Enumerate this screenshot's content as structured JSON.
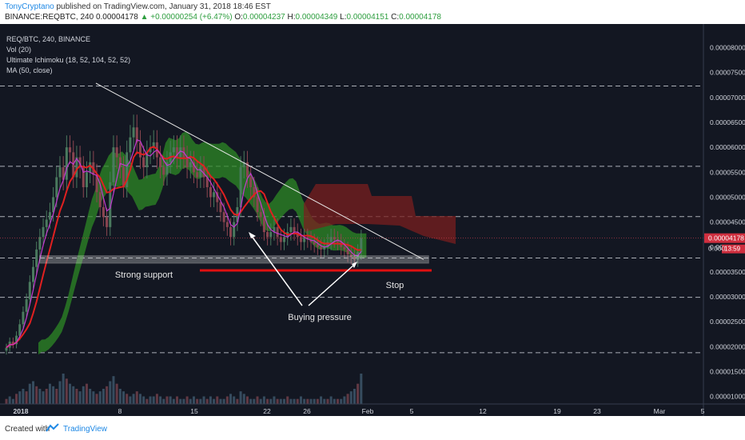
{
  "header": {
    "author": "TonyCryptano",
    "published": "published on TradingView.com, January 31, 2018 18:46 EST",
    "symbol_line": "BINANCE:REQBTC, 240",
    "last_price": "0.00004178",
    "change_text": "▲ +0.00000254 (+6.47%)",
    "open_label": "O:",
    "open_value": "0.00004237",
    "high_label": "H:",
    "high_value": "0.00004349",
    "low_label": "L:",
    "low_value": "0.00004151",
    "close_label": "C:",
    "close_value": "0.00004178"
  },
  "legend": {
    "symbol": "REQ/BTC, 240, BINANCE",
    "vol": "Vol (20)",
    "ichimoku": "Ultimate Ichimoku (18, 52, 104, 52, 52)",
    "ma": "MA (50, close)"
  },
  "annotations": {
    "support": "Strong support",
    "stop": "Stop",
    "buying": "Buying pressure"
  },
  "price_badge": {
    "price": "0.00004178",
    "timer": "13:59"
  },
  "footer": {
    "created_with": "Created with",
    "brand": "TradingView"
  },
  "colors": {
    "background": "#131722",
    "candle_up": "#4a7a5e",
    "candle_down": "#8a4550",
    "ma_red": "#e02020",
    "kijun_magenta": "#c23ad1",
    "cloud_green": "#2d8a26",
    "cloud_red": "#7a1f1f",
    "stop_line": "#e01010",
    "accent_blue": "#1e88e5"
  },
  "chart_data": {
    "type": "candlestick",
    "title": "REQ/BTC, 240, BINANCE",
    "y_axis": {
      "ticks": [
        "0.00008000",
        "0.00007500",
        "0.00007000",
        "0.00006500",
        "0.00006000",
        "0.00005500",
        "0.00005000",
        "0.00004500",
        "0.00004000",
        "0.00003500",
        "0.00003000",
        "0.00002500",
        "0.00002000",
        "0.00001500",
        "0.00001000"
      ],
      "range": [
        8.5e-06,
        8.25e-05
      ],
      "current_label": "0.00004178",
      "extra_label": "0.000"
    },
    "x_axis": {
      "ticks": [
        "2018",
        "8",
        "15",
        "22",
        "26",
        "Feb",
        "5",
        "12",
        "19",
        "23",
        "Mar",
        "5"
      ]
    },
    "dashed_levels": [
      7.23e-05,
      5.62e-05,
      4.61e-05,
      3.78e-05,
      2.99e-05,
      1.88e-05
    ],
    "support_zone": [
      3.68e-05,
      3.82e-05
    ],
    "stop_level": 3.53e-05,
    "closes": [
      1.98e-05,
      2.1e-05,
      2.05e-05,
      2.22e-05,
      2.45e-05,
      2.7e-05,
      2.95e-05,
      3.3e-05,
      3.6e-05,
      3.95e-05,
      4.2e-05,
      4.4e-05,
      4.55e-05,
      4.7e-05,
      5e-05,
      5.4e-05,
      5.6e-05,
      5.35e-05,
      6e-05,
      5.9e-05,
      5.4e-05,
      5.8e-05,
      5.6e-05,
      5.2e-05,
      5.5e-05,
      5.7e-05,
      5.45e-05,
      5.1e-05,
      4.8e-05,
      4.6e-05,
      4.4e-05,
      5.3e-05,
      6e-05,
      5.8e-05,
      5.6e-05,
      5.2e-05,
      5.9e-05,
      6.2e-05,
      6.4e-05,
      6.1e-05,
      5.8e-05,
      5.6e-05,
      5.9e-05,
      6e-05,
      6.1e-05,
      5.8e-05,
      5.6e-05,
      5.45e-05,
      5.7e-05,
      5.9e-05,
      6e-05,
      5.8e-05,
      6e-05,
      5.8e-05,
      5.6e-05,
      5.7e-05,
      5.5e-05,
      5.4e-05,
      5.6e-05,
      5.4e-05,
      5.2e-05,
      5e-05,
      5.1e-05,
      4.9e-05,
      4.7e-05,
      4.5e-05,
      4.4e-05,
      4.2e-05,
      4.5e-05,
      4.8e-05,
      5.6e-05,
      5.7e-05,
      5.4e-05,
      5.2e-05,
      5e-05,
      4.7e-05,
      4.6e-05,
      4.3e-05,
      4.2e-05,
      4.3e-05,
      4.4e-05,
      4.2e-05,
      4.1e-05,
      4.2e-05,
      4.3e-05,
      4.4e-05,
      4.3e-05,
      4.2e-05,
      4.1e-05,
      4.2e-05,
      4.15e-05,
      4.1e-05,
      4.05e-05,
      4e-05,
      3.95e-05,
      4e-05,
      4.1e-05,
      4.2e-05,
      4.15e-05,
      4.1e-05,
      4e-05,
      3.95e-05,
      3.85e-05,
      3.8e-05,
      3.75e-05,
      3.9e-05,
      4.18e-05
    ],
    "volumes": [
      2,
      3,
      2,
      4,
      5,
      6,
      5,
      8,
      9,
      7,
      6,
      5,
      6,
      8,
      7,
      6,
      9,
      12,
      10,
      8,
      7,
      6,
      5,
      7,
      8,
      6,
      5,
      4,
      5,
      6,
      7,
      9,
      11,
      8,
      6,
      5,
      4,
      3,
      4,
      5,
      4,
      3,
      2,
      3,
      3,
      4,
      3,
      2,
      3,
      3,
      2,
      3,
      2,
      2,
      3,
      2,
      3,
      2,
      2,
      3,
      2,
      3,
      2,
      3,
      2,
      2,
      3,
      4,
      3,
      2,
      5,
      4,
      3,
      2,
      2,
      3,
      2,
      3,
      2,
      2,
      3,
      2,
      2,
      2,
      3,
      2,
      2,
      2,
      3,
      2,
      2,
      2,
      2,
      2,
      3,
      2,
      2,
      3,
      2,
      2,
      2,
      3,
      4,
      5,
      6,
      8,
      12
    ]
  }
}
